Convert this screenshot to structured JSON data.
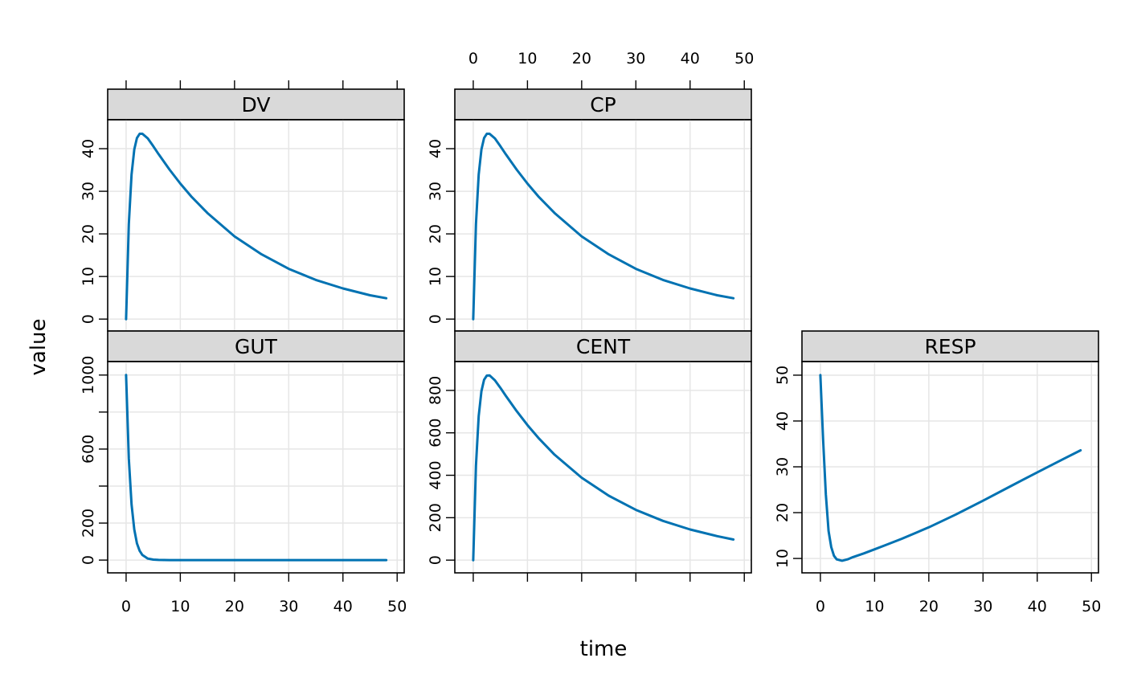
{
  "chart_data": {
    "type": "line",
    "layout": "lattice 3x2, free y scales",
    "xlabel": "time",
    "ylabel": "value",
    "grid": true,
    "line_color": "#0072B2",
    "strip_color": "#D9D9D9",
    "xlim": [
      -3.4,
      51.3
    ],
    "x_ticks": [
      0,
      10,
      20,
      30,
      40,
      50
    ],
    "x": [
      0,
      0.5,
      1,
      1.5,
      2,
      2.5,
      3,
      4,
      5,
      6,
      8,
      10,
      12,
      15,
      20,
      25,
      30,
      35,
      40,
      45,
      48
    ],
    "panels": [
      {
        "name": "DV",
        "row": 0,
        "col": 0,
        "ylim": [
          -2.8,
          46.8
        ],
        "y_ticks": [
          0,
          10,
          20,
          30,
          40
        ],
        "y_tick_labels": [
          "0",
          "10",
          "20",
          "30",
          "40"
        ],
        "top_labels": false,
        "bottom_labels": false,
        "top_ticks": true,
        "bottom_ticks": false,
        "values": [
          0,
          22.3,
          33.9,
          39.8,
          42.5,
          43.5,
          43.5,
          42.4,
          40.6,
          38.7,
          35.1,
          31.8,
          28.8,
          24.9,
          19.4,
          15.2,
          11.8,
          9.2,
          7.2,
          5.6,
          4.9
        ]
      },
      {
        "name": "CP",
        "row": 0,
        "col": 1,
        "ylim": [
          -2.8,
          46.8
        ],
        "y_ticks": [
          0,
          10,
          20,
          30,
          40
        ],
        "y_tick_labels": [
          "0",
          "10",
          "20",
          "30",
          "40"
        ],
        "top_labels": true,
        "bottom_labels": false,
        "top_ticks": true,
        "bottom_ticks": false,
        "values": [
          0,
          22.3,
          33.9,
          39.8,
          42.5,
          43.5,
          43.5,
          42.4,
          40.6,
          38.7,
          35.1,
          31.8,
          28.8,
          24.9,
          19.4,
          15.2,
          11.8,
          9.2,
          7.2,
          5.6,
          4.9
        ]
      },
      {
        "name": "GUT",
        "row": 1,
        "col": 0,
        "ylim": [
          -69,
          1073
        ],
        "y_ticks": [
          0,
          200,
          400,
          600,
          800,
          1000
        ],
        "y_tick_labels": [
          "0",
          "200",
          "",
          "600",
          "",
          "1000"
        ],
        "top_labels": false,
        "bottom_labels": true,
        "top_ticks": false,
        "bottom_ticks": true,
        "values": [
          1000,
          548.8,
          301.2,
          165.3,
          90.7,
          49.8,
          27.3,
          8.2,
          2.5,
          0.7,
          0.1,
          0,
          0,
          0,
          0,
          0,
          0,
          0,
          0,
          0,
          0
        ]
      },
      {
        "name": "CENT",
        "row": 1,
        "col": 1,
        "ylim": [
          -60,
          936
        ],
        "y_ticks": [
          0,
          200,
          400,
          600,
          800
        ],
        "y_tick_labels": [
          "0",
          "200",
          "400",
          "600",
          "800"
        ],
        "top_labels": false,
        "bottom_labels": false,
        "top_ticks": false,
        "bottom_ticks": true,
        "values": [
          0,
          445.1,
          678.5,
          796.0,
          850.2,
          869.8,
          870.8,
          847.4,
          812.1,
          774.7,
          702.6,
          636.4,
          576.5,
          497.2,
          388.3,
          303.5,
          236.8,
          184.9,
          144.6,
          112.9,
          97.3
        ]
      },
      {
        "name": "RESP",
        "row": 1,
        "col": 2,
        "ylim": [
          6.86,
          52.97
        ],
        "y_ticks": [
          10,
          20,
          30,
          40,
          50
        ],
        "y_tick_labels": [
          "10",
          "20",
          "30",
          "40",
          "50"
        ],
        "top_labels": false,
        "bottom_labels": true,
        "top_ticks": false,
        "bottom_ticks": true,
        "values": [
          50,
          36,
          24,
          16,
          12.5,
          10.6,
          9.8,
          9.5,
          9.8,
          10.3,
          11.1,
          12.0,
          12.9,
          14.3,
          16.8,
          19.6,
          22.6,
          25.7,
          28.8,
          31.8,
          33.6
        ]
      }
    ]
  }
}
